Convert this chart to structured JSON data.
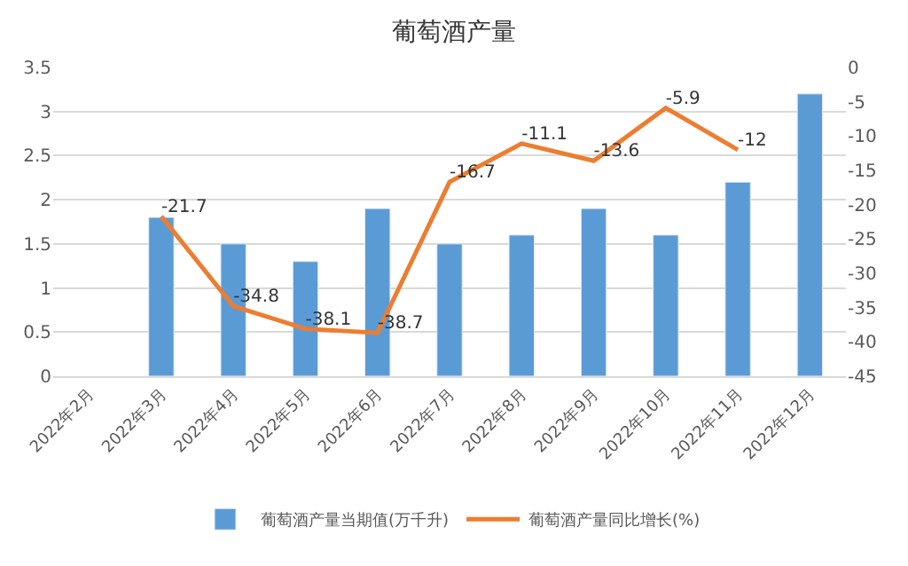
{
  "chart_data": {
    "type": "bar",
    "title": "葡萄酒产量",
    "categories": [
      "2022年2月",
      "2022年3月",
      "2022年4月",
      "2022年5月",
      "2022年6月",
      "2022年7月",
      "2022年8月",
      "2022年9月",
      "2022年10月",
      "2022年11月",
      "2022年12月"
    ],
    "series": [
      {
        "name": "葡萄酒产量当期值(万千升)",
        "color": "#5b9bd5",
        "values": [
          null,
          1.8,
          1.5,
          1.3,
          1.9,
          1.5,
          1.6,
          1.9,
          1.6,
          2.2,
          3.2
        ]
      },
      {
        "name": "葡萄酒产量同比增长(%)",
        "type": "line",
        "axis": "y2",
        "color": "#ed7d31",
        "values": [
          null,
          -21.7,
          -34.8,
          -38.1,
          -38.7,
          -16.7,
          -11.1,
          -13.6,
          -5.9,
          -12,
          null
        ],
        "value_labels": [
          null,
          "-21.7",
          "-34.8",
          "-38.1",
          "-38.7",
          "-16.7",
          "-11.1",
          "-13.6",
          "-5.9",
          "-12",
          null
        ]
      }
    ],
    "ylim": [
      0,
      3.5
    ],
    "yticks": [
      0,
      0.5,
      1,
      1.5,
      2,
      2.5,
      3,
      3.5
    ],
    "y2lim": [
      -45,
      0
    ],
    "y2ticks": [
      -45,
      -40,
      -35,
      -30,
      -25,
      -20,
      -15,
      -10,
      -5,
      0
    ],
    "grid": "y",
    "legend": "bottom",
    "marker": "none",
    "line_style": "solid"
  }
}
